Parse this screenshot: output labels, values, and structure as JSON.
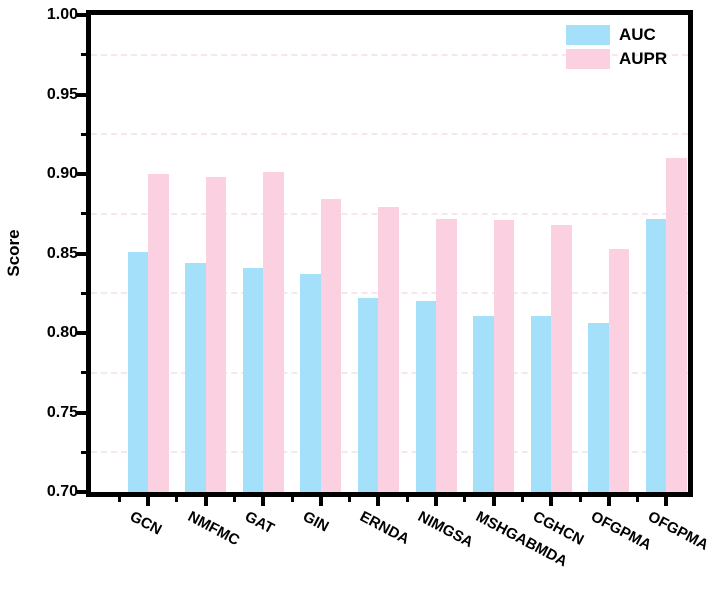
{
  "figure": {
    "background": "#ffffff",
    "axis_color": "#000000"
  },
  "chart_data": {
    "type": "bar",
    "title": "",
    "xlabel": "",
    "ylabel": "Score",
    "categories": [
      "GCN",
      "NMFMC",
      "GAT",
      "GIN",
      "ERNDA",
      "NIMGSA",
      "MSHGABMDA",
      "CGHCN",
      "OFGPMA",
      "OFGPMA"
    ],
    "series": [
      {
        "name": "AUC",
        "color": "#a5e0fa",
        "values": [
          0.851,
          0.844,
          0.841,
          0.837,
          0.822,
          0.82,
          0.811,
          0.811,
          0.806,
          0.872
        ]
      },
      {
        "name": "AUPR",
        "color": "#fbd0e0",
        "values": [
          0.9,
          0.898,
          0.901,
          0.884,
          0.879,
          0.872,
          0.871,
          0.868,
          0.853,
          0.91
        ]
      }
    ],
    "ylim": [
      0.7,
      1.0
    ],
    "y_major_ticks": [
      0.7,
      0.75,
      0.8,
      0.85,
      0.9,
      0.95,
      1.0
    ],
    "y_minor_ticks": [
      0.725,
      0.775,
      0.825,
      0.875,
      0.925,
      0.975
    ],
    "grid": "horizontal dashed lines at minor ticks only",
    "gridline_color": "#f6e6ee",
    "legend_position": "upper right",
    "tick_direction": "out"
  }
}
